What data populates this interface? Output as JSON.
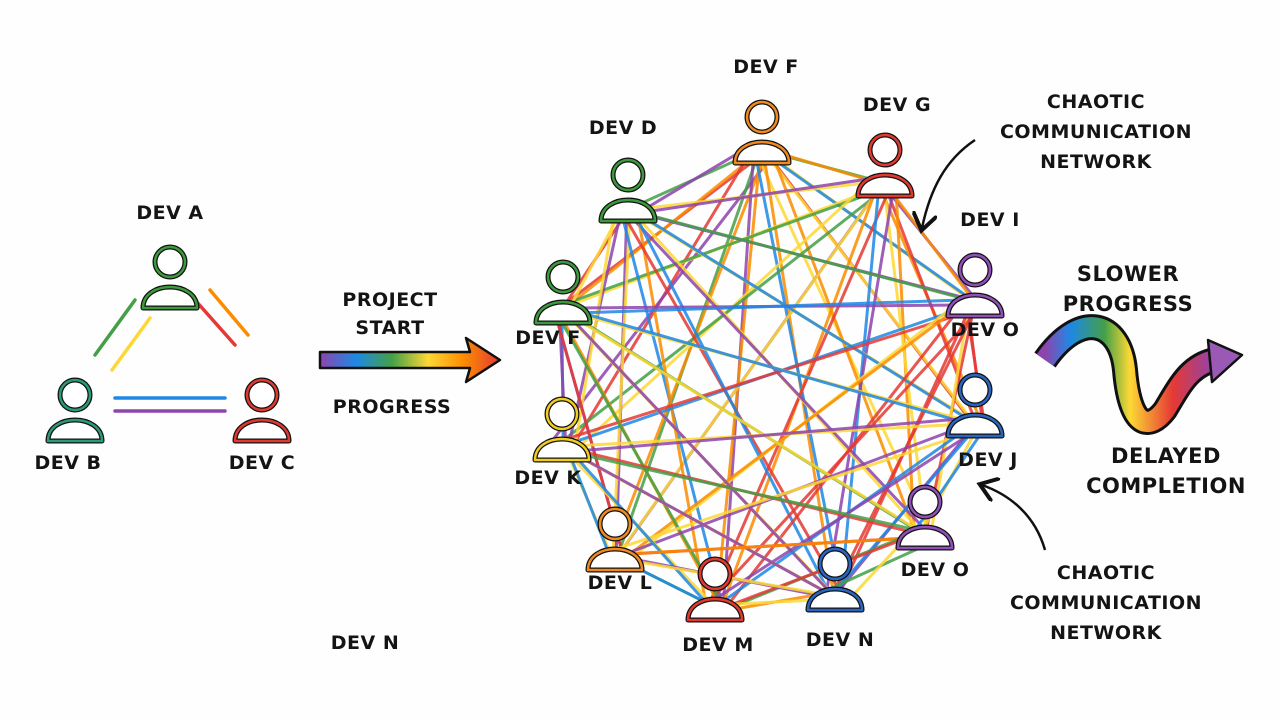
{
  "palette": [
    "#e53935",
    "#fb8c00",
    "#fdd835",
    "#43a047",
    "#1e88e5",
    "#8e44ad",
    "#26a69a"
  ],
  "small_team": {
    "nodes": [
      {
        "label": "DEV A",
        "color": "#3c9a3c"
      },
      {
        "label": "DEV B",
        "color": "#2a9a7a"
      },
      {
        "label": "DEV C",
        "color": "#e03a30"
      }
    ]
  },
  "transition": {
    "top": "PROJECT\nSTART",
    "bottom": "PROGRESS"
  },
  "network": {
    "nodes": [
      {
        "label": "DEV F",
        "color": "#f08a20"
      },
      {
        "label": "DEV G",
        "color": "#e03a30"
      },
      {
        "label": "DEV D",
        "color": "#3c9a3c"
      },
      {
        "label": "DEV I",
        "color": "#9050b8"
      },
      {
        "label": "DEV F",
        "color": "#3c9a3c"
      },
      {
        "label": "DEV O",
        "color": "#2a66c0"
      },
      {
        "label": "DEV K",
        "color": "#f2cc20"
      },
      {
        "label": "DEV O",
        "color": "#9050b8"
      },
      {
        "label": "DEV L",
        "color": "#f08a20"
      },
      {
        "label": "DEV M",
        "color": "#e03a30"
      },
      {
        "label": "DEV N",
        "color": "#2a66c0"
      }
    ],
    "extra_label_j": "DEV J",
    "annotation_top": "CHAOTIC\nCOMMUNICATION\nNETWORK",
    "annotation_bottom": "CHAOTIC\nCOMMUNICATION\nNETWORK"
  },
  "outcome": {
    "top": "SLOWER\nPROGRESS",
    "bottom": "DELAYED\nCOMPLETION"
  },
  "stray_label": "DEV N"
}
